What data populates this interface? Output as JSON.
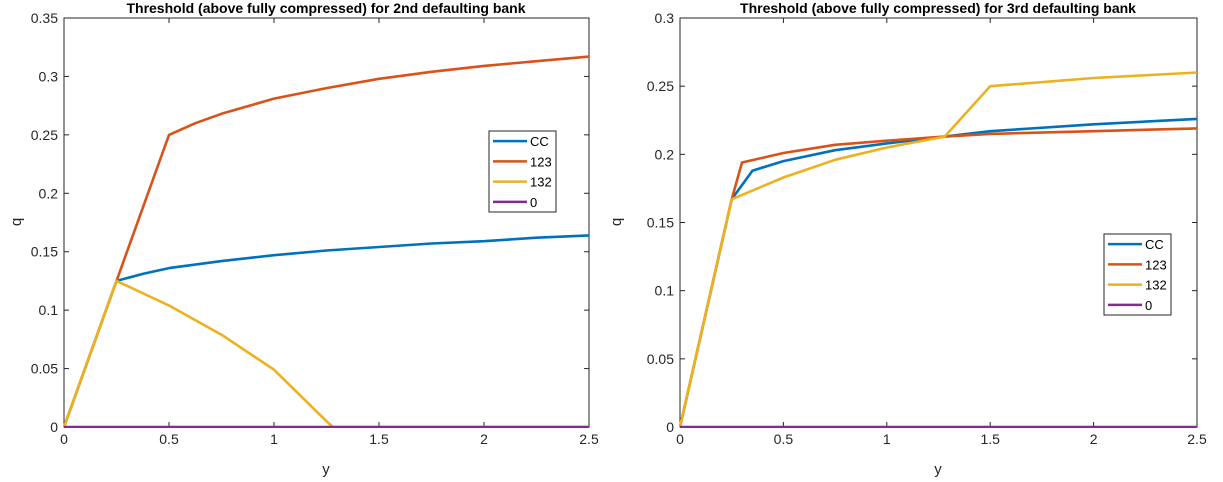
{
  "chart_data": [
    {
      "type": "line",
      "title": "Threshold (above fully compressed) for 2nd defaulting bank",
      "xlabel": "y",
      "ylabel": "q",
      "xlim": [
        0,
        2.5
      ],
      "ylim": [
        0,
        0.35
      ],
      "xticks": [
        0,
        0.5,
        1,
        1.5,
        2,
        2.5
      ],
      "xtick_labels": [
        "0",
        "0.5",
        "1",
        "1.5",
        "2",
        "2.5"
      ],
      "yticks": [
        0,
        0.05,
        0.1,
        0.15,
        0.2,
        0.25,
        0.3,
        0.35
      ],
      "ytick_labels": [
        "0",
        "0.05",
        "0.1",
        "0.15",
        "0.2",
        "0.25",
        "0.3",
        "0.35"
      ],
      "legend_position": "right",
      "series": [
        {
          "name": "CC",
          "color": "#0072BD",
          "x": [
            0,
            0.25,
            0.375,
            0.5,
            0.75,
            1.0,
            1.25,
            1.5,
            1.75,
            2.0,
            2.25,
            2.5
          ],
          "y": [
            0,
            0.125,
            0.131,
            0.136,
            0.142,
            0.147,
            0.151,
            0.154,
            0.157,
            0.159,
            0.162,
            0.164
          ]
        },
        {
          "name": "123",
          "color": "#D95319",
          "x": [
            0,
            0.25,
            0.5,
            0.625,
            0.75,
            1.0,
            1.25,
            1.5,
            1.75,
            2.0,
            2.25,
            2.5
          ],
          "y": [
            0,
            0.125,
            0.25,
            0.26,
            0.268,
            0.281,
            0.29,
            0.298,
            0.304,
            0.309,
            0.313,
            0.317
          ]
        },
        {
          "name": "132",
          "color": "#EDB120",
          "x": [
            0,
            0.25,
            0.5,
            0.75,
            1.0,
            1.25,
            1.28,
            1.5,
            2.0,
            2.5
          ],
          "y": [
            0,
            0.125,
            0.104,
            0.079,
            0.049,
            0.005,
            0,
            0,
            0,
            0
          ]
        },
        {
          "name": "0",
          "color": "#7E2F8E",
          "x": [
            0,
            2.5
          ],
          "y": [
            0,
            0
          ]
        }
      ]
    },
    {
      "type": "line",
      "title": "Threshold (above fully compressed) for 3rd defaulting bank",
      "xlabel": "y",
      "ylabel": "q",
      "xlim": [
        0,
        2.5
      ],
      "ylim": [
        0,
        0.3
      ],
      "xticks": [
        0,
        0.5,
        1,
        1.5,
        2,
        2.5
      ],
      "xtick_labels": [
        "0",
        "0.5",
        "1",
        "1.5",
        "2",
        "2.5"
      ],
      "yticks": [
        0,
        0.05,
        0.1,
        0.15,
        0.2,
        0.25,
        0.3
      ],
      "ytick_labels": [
        "0",
        "0.05",
        "0.1",
        "0.15",
        "0.2",
        "0.25",
        "0.3"
      ],
      "legend_position": "lower right",
      "series": [
        {
          "name": "CC",
          "color": "#0072BD",
          "x": [
            0,
            0.25,
            0.35,
            0.5,
            0.75,
            1.0,
            1.28,
            1.5,
            2.0,
            2.5
          ],
          "y": [
            0,
            0.167,
            0.188,
            0.195,
            0.203,
            0.208,
            0.213,
            0.217,
            0.222,
            0.226
          ]
        },
        {
          "name": "123",
          "color": "#D95319",
          "x": [
            0,
            0.25,
            0.3,
            0.5,
            0.75,
            1.0,
            1.28,
            1.5,
            2.0,
            2.5
          ],
          "y": [
            0,
            0.167,
            0.194,
            0.201,
            0.207,
            0.21,
            0.213,
            0.215,
            0.217,
            0.219
          ]
        },
        {
          "name": "132",
          "color": "#EDB120",
          "x": [
            0,
            0.25,
            0.5,
            0.75,
            1.0,
            1.28,
            1.5,
            2.0,
            2.5
          ],
          "y": [
            0,
            0.167,
            0.183,
            0.196,
            0.205,
            0.213,
            0.25,
            0.256,
            0.26
          ]
        },
        {
          "name": "0",
          "color": "#7E2F8E",
          "x": [
            0,
            2.5
          ],
          "y": [
            0,
            0
          ]
        }
      ]
    }
  ]
}
